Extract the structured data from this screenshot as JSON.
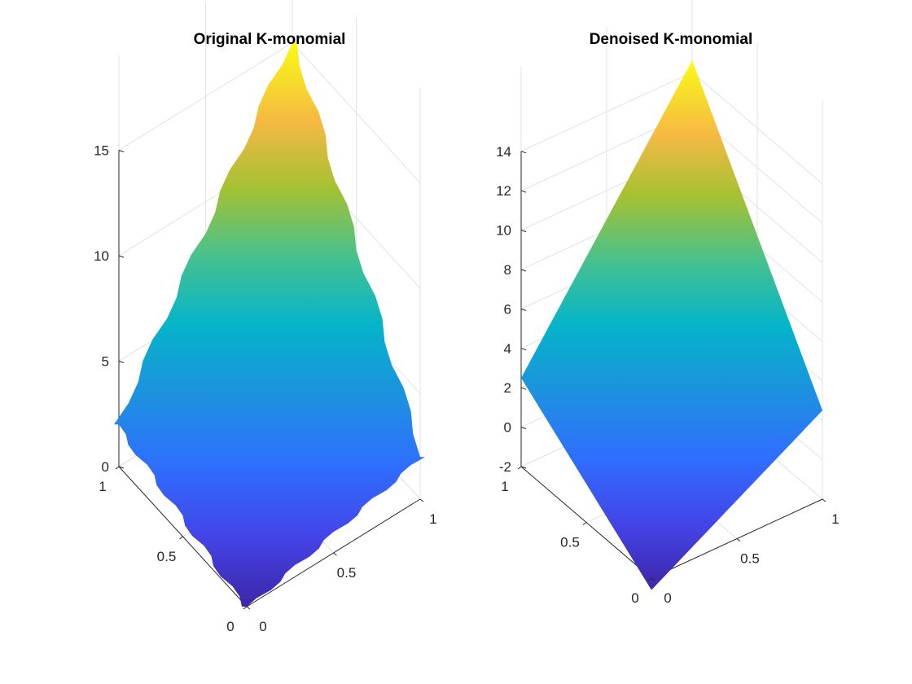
{
  "chart_data": [
    {
      "type": "surface",
      "title": "Original K-monomial",
      "surface": "staircase",
      "x_ticks": [
        "0",
        "0.5",
        "1"
      ],
      "y_ticks": [
        "0",
        "0.5",
        "1"
      ],
      "z_ticks": [
        "0",
        "5",
        "10",
        "15"
      ],
      "z_tick_values": [
        0,
        5,
        10,
        15
      ],
      "xlim": [
        0,
        1
      ],
      "ylim": [
        0,
        1
      ],
      "zlim": [
        0,
        15
      ],
      "z_at_corners": {
        "x0_y0": 0,
        "x1_y0": 2,
        "x0_y1": 2,
        "x1_y1": 15
      },
      "colormap": "parula",
      "grid": true
    },
    {
      "type": "surface",
      "title": "Denoised K-monomial",
      "surface": "smooth",
      "x_ticks": [
        "0",
        "0.5",
        "1"
      ],
      "y_ticks": [
        "0",
        "0.5",
        "1"
      ],
      "z_ticks": [
        "-2",
        "0",
        "2",
        "4",
        "6",
        "8",
        "10",
        "12",
        "14"
      ],
      "z_tick_values": [
        -2,
        0,
        2,
        4,
        6,
        8,
        10,
        12,
        14
      ],
      "xlim": [
        0,
        1
      ],
      "ylim": [
        0,
        1
      ],
      "zlim": [
        -2,
        14
      ],
      "z_at_corners": {
        "x0_y0": -2.6,
        "x1_y0": 2.5,
        "x0_y1": 2.5,
        "x1_y1": 14.6
      },
      "colormap": "parula",
      "grid": true
    }
  ]
}
